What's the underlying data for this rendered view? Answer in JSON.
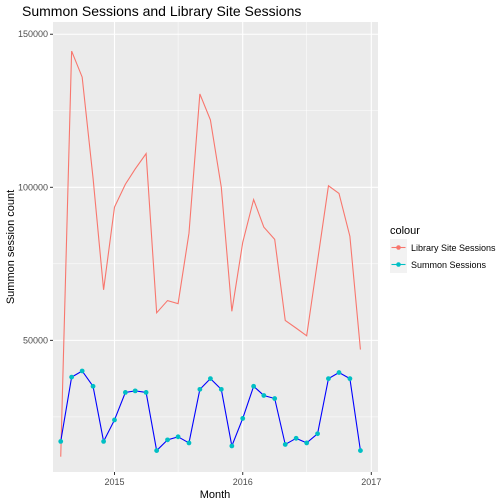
{
  "chart_data": {
    "type": "line",
    "title": "Summon Sessions and Library Site Sessions",
    "xlabel": "Month",
    "ylabel": "Summon session count",
    "x_ticks": [
      "2015",
      "2016",
      "2017"
    ],
    "y_ticks": [
      "50000",
      "100000",
      "150000"
    ],
    "xlim": [
      "2014-07-10",
      "2017-01-20"
    ],
    "ylim": [
      7000,
      154000
    ],
    "legend": {
      "title": "colour",
      "position": "right",
      "items": [
        {
          "label": "Library Site Sessions",
          "color": "#F8766D"
        },
        {
          "label": "Summon Sessions",
          "color": "#00BFC4"
        }
      ]
    },
    "grid": true,
    "x": [
      "2014-08-01",
      "2014-09-01",
      "2014-10-01",
      "2014-11-01",
      "2014-12-01",
      "2015-01-01",
      "2015-02-01",
      "2015-03-01",
      "2015-04-01",
      "2015-05-01",
      "2015-06-01",
      "2015-07-01",
      "2015-08-01",
      "2015-09-01",
      "2015-10-01",
      "2015-11-01",
      "2015-12-01",
      "2016-01-01",
      "2016-02-01",
      "2016-03-01",
      "2016-04-01",
      "2016-05-01",
      "2016-06-01",
      "2016-07-01",
      "2016-08-01",
      "2016-09-01",
      "2016-10-01",
      "2016-11-01",
      "2016-12-01"
    ],
    "series": [
      {
        "name": "Library Site Sessions",
        "color": "#F8766D",
        "style": "line",
        "values": [
          12000,
          144500,
          136000,
          103000,
          66500,
          93500,
          101000,
          106000,
          111000,
          59000,
          63000,
          62000,
          85000,
          130500,
          122000,
          100000,
          59500,
          82000,
          96000,
          87000,
          83000,
          56500,
          54000,
          51500,
          76000,
          100500,
          98000,
          84000,
          47000
        ]
      },
      {
        "name": "Summon Sessions",
        "color": "#00BFC4",
        "line_color": "#0000FF",
        "style": "line+points",
        "values": [
          17000,
          38000,
          40000,
          35000,
          17000,
          24000,
          33000,
          33500,
          33000,
          14000,
          17500,
          18500,
          16500,
          34000,
          37500,
          34000,
          15500,
          24500,
          35000,
          32000,
          31000,
          16000,
          18000,
          16500,
          19500,
          37500,
          39500,
          37500,
          14000
        ]
      }
    ]
  }
}
